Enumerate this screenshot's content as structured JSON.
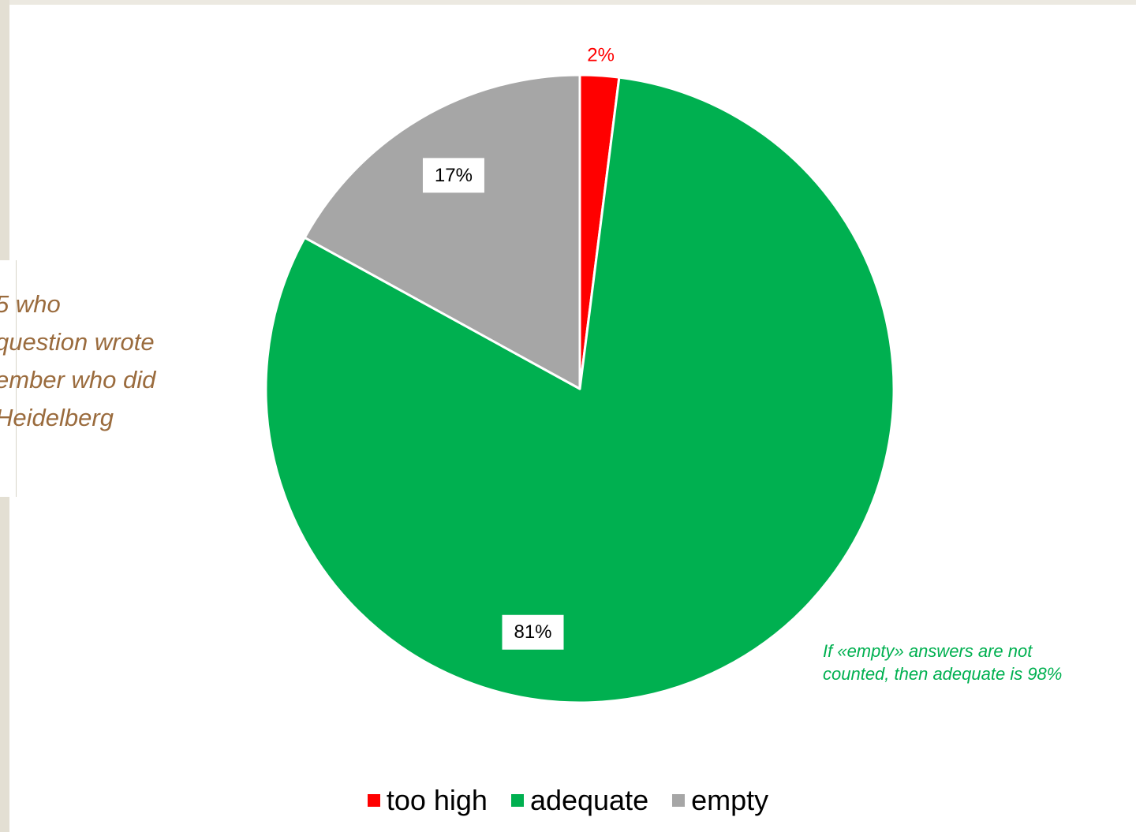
{
  "chart_data": {
    "type": "pie",
    "series": [
      {
        "label": "too high",
        "value": 2,
        "data_label": "2%",
        "color": "#ff0000"
      },
      {
        "label": "adequate",
        "value": 81,
        "data_label": "81%",
        "color": "#00b050"
      },
      {
        "label": "empty",
        "value": 17,
        "data_label": "17%",
        "color": "#a6a6a6"
      }
    ],
    "legend_position": "bottom"
  },
  "annotations": {
    "left_note": "5 who\n question wrote\nember who did\n Heidelberg",
    "green_note": "If «empty» answers are not counted, then adequate is 98%"
  }
}
